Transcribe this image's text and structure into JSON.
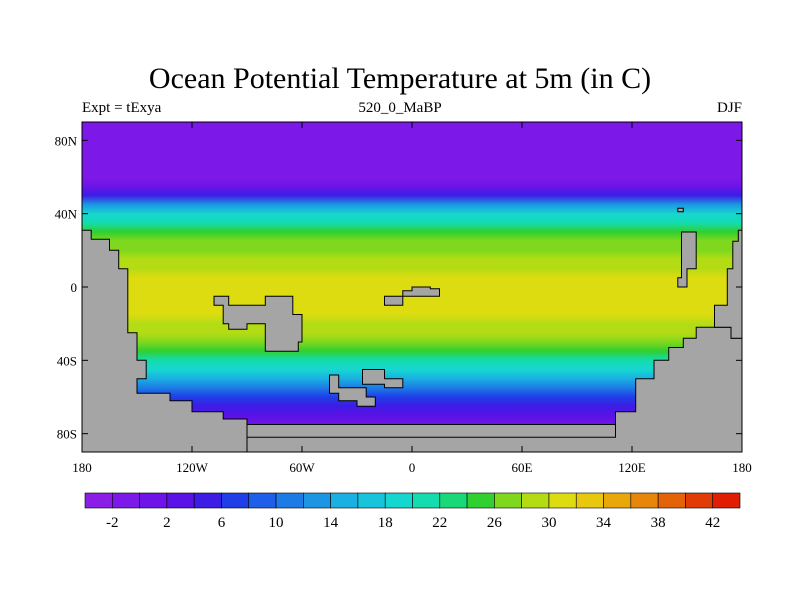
{
  "title": "Ocean Potential Temperature at 5m (in C)",
  "subtitle_left": "Expt = tExya",
  "subtitle_center": "520_0_MaBP",
  "subtitle_right": "DJF",
  "chart_data": {
    "type": "heatmap",
    "title": "Ocean Potential Temperature at 5m (in C)",
    "x_ticks": [
      "180",
      "120W",
      "60W",
      "0",
      "60E",
      "120E",
      "180"
    ],
    "y_ticks": [
      "80N",
      "40N",
      "0",
      "40S",
      "80S"
    ],
    "xlim": [
      -180,
      180
    ],
    "ylim": [
      -90,
      90
    ],
    "colorbar": {
      "levels": [
        -4,
        -2,
        0,
        2,
        4,
        6,
        8,
        10,
        12,
        14,
        16,
        18,
        20,
        22,
        24,
        26,
        28,
        30,
        32,
        34,
        36,
        38,
        40,
        42,
        44
      ],
      "labels": [
        "-2",
        "2",
        "6",
        "10",
        "14",
        "18",
        "22",
        "26",
        "30",
        "34",
        "38",
        "42"
      ],
      "colors": [
        "#8a1ee6",
        "#7d19e8",
        "#6e14e8",
        "#5a12e6",
        "#3d1ce6",
        "#1f3ee8",
        "#1e5ee8",
        "#1d7be6",
        "#1c96e4",
        "#1ab0e2",
        "#18c4dc",
        "#16d6d0",
        "#14dcae",
        "#18d878",
        "#30d030",
        "#80d81e",
        "#b4dc14",
        "#dcdc10",
        "#e8c80e",
        "#e8a80c",
        "#e6860a",
        "#e46208",
        "#e23c06",
        "#e01e04"
      ]
    },
    "land_color": "#a5a5a5",
    "zonal_profile_lat": [
      90,
      80,
      70,
      60,
      55,
      50,
      45,
      40,
      35,
      30,
      25,
      20,
      15,
      10,
      5,
      0,
      -5,
      -10,
      -15,
      -20,
      -25,
      -30,
      -35,
      -40,
      -45,
      -50,
      -55,
      -60,
      -65,
      -70,
      -75,
      -80,
      -90
    ],
    "zonal_profile_temp": [
      -2,
      -2,
      -2,
      -1,
      1,
      5,
      12,
      18,
      21,
      24,
      26,
      27,
      28,
      29,
      30,
      31,
      31,
      30,
      30,
      29,
      28,
      26,
      24,
      21,
      18,
      14,
      10,
      7,
      5,
      3,
      1,
      0,
      -1
    ]
  }
}
